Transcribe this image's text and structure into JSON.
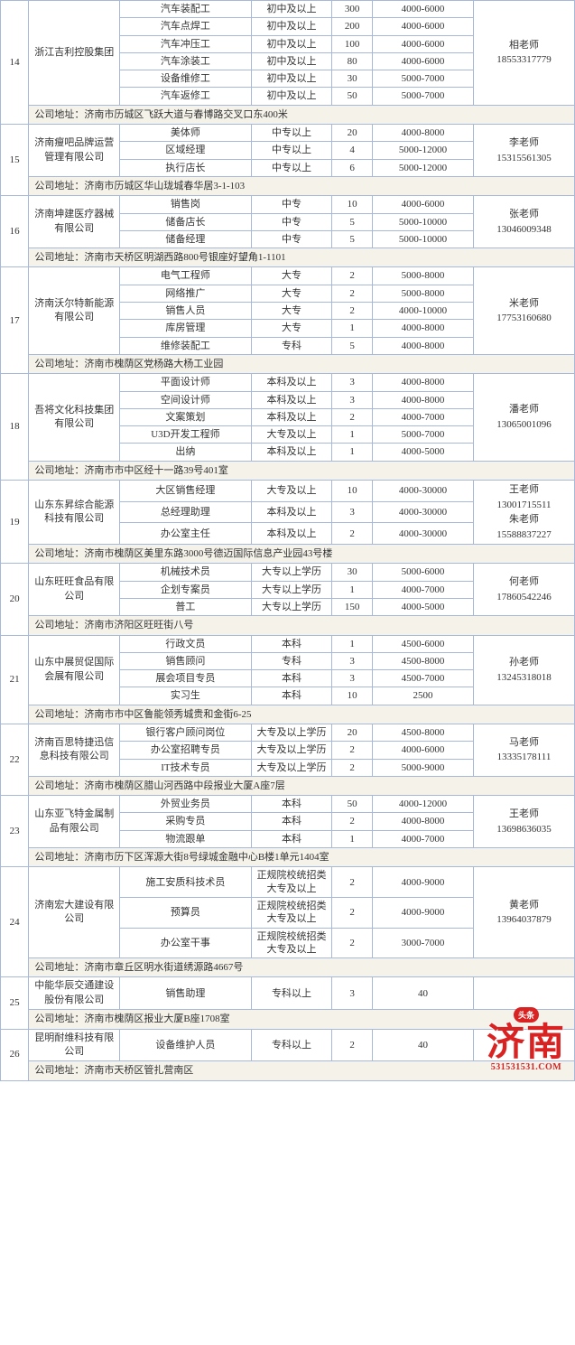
{
  "companies": [
    {
      "idx": "14",
      "name": "浙江吉利控股集团",
      "contact": "相老师\n18553317779",
      "jobs": [
        {
          "title": "汽车装配工",
          "edu": "初中及以上",
          "count": "300",
          "salary": "4000-6000"
        },
        {
          "title": "汽车点焊工",
          "edu": "初中及以上",
          "count": "200",
          "salary": "4000-6000"
        },
        {
          "title": "汽车冲压工",
          "edu": "初中及以上",
          "count": "100",
          "salary": "4000-6000"
        },
        {
          "title": "汽车涂装工",
          "edu": "初中及以上",
          "count": "80",
          "salary": "4000-6000"
        },
        {
          "title": "设备维修工",
          "edu": "初中及以上",
          "count": "30",
          "salary": "5000-7000"
        },
        {
          "title": "汽车返修工",
          "edu": "初中及以上",
          "count": "50",
          "salary": "5000-7000"
        }
      ],
      "addr": "公司地址：济南市历城区飞跃大道与春博路交叉口东400米"
    },
    {
      "idx": "15",
      "name": "济南瘦吧品牌运营管理有限公司",
      "contact": "李老师\n15315561305",
      "jobs": [
        {
          "title": "美体师",
          "edu": "中专以上",
          "count": "20",
          "salary": "4000-8000"
        },
        {
          "title": "区域经理",
          "edu": "中专以上",
          "count": "4",
          "salary": "5000-12000"
        },
        {
          "title": "执行店长",
          "edu": "中专以上",
          "count": "6",
          "salary": "5000-12000"
        }
      ],
      "addr": "公司地址：济南市历城区华山珑城春华居3-1-103"
    },
    {
      "idx": "16",
      "name": "济南坤建医疗器械有限公司",
      "contact": "张老师\n13046009348",
      "jobs": [
        {
          "title": "销售岗",
          "edu": "中专",
          "count": "10",
          "salary": "4000-6000"
        },
        {
          "title": "储备店长",
          "edu": "中专",
          "count": "5",
          "salary": "5000-10000"
        },
        {
          "title": "储备经理",
          "edu": "中专",
          "count": "5",
          "salary": "5000-10000"
        }
      ],
      "addr": "公司地址：济南市天桥区明湖西路800号银座好望角1-1101"
    },
    {
      "idx": "17",
      "name": "济南沃尔特新能源有限公司",
      "contact": "米老师\n17753160680",
      "jobs": [
        {
          "title": "电气工程师",
          "edu": "大专",
          "count": "2",
          "salary": "5000-8000"
        },
        {
          "title": "网络推广",
          "edu": "大专",
          "count": "2",
          "salary": "5000-8000"
        },
        {
          "title": "销售人员",
          "edu": "大专",
          "count": "2",
          "salary": "4000-10000"
        },
        {
          "title": "库房管理",
          "edu": "大专",
          "count": "1",
          "salary": "4000-8000"
        },
        {
          "title": "维修装配工",
          "edu": "专科",
          "count": "5",
          "salary": "4000-8000"
        }
      ],
      "addr": "公司地址：济南市槐荫区党杨路大杨工业园"
    },
    {
      "idx": "18",
      "name": "吾将文化科技集团有限公司",
      "contact": "潘老师\n13065001096",
      "jobs": [
        {
          "title": "平面设计师",
          "edu": "本科及以上",
          "count": "3",
          "salary": "4000-8000"
        },
        {
          "title": "空间设计师",
          "edu": "本科及以上",
          "count": "3",
          "salary": "4000-8000"
        },
        {
          "title": "文案策划",
          "edu": "本科及以上",
          "count": "2",
          "salary": "4000-7000"
        },
        {
          "title": "U3D开发工程师",
          "edu": "大专及以上",
          "count": "1",
          "salary": "5000-7000"
        },
        {
          "title": "出纳",
          "edu": "本科及以上",
          "count": "1",
          "salary": "4000-5000"
        }
      ],
      "addr": "公司地址：济南市市中区经十一路39号401室"
    },
    {
      "idx": "19",
      "name": "山东东昇综合能源科技有限公司",
      "contact": "王老师\n13001715511\n朱老师\n15588837227",
      "jobs": [
        {
          "title": "大区销售经理",
          "edu": "大专及以上",
          "count": "10",
          "salary": "4000-30000"
        },
        {
          "title": "总经理助理",
          "edu": "本科及以上",
          "count": "3",
          "salary": "4000-30000"
        },
        {
          "title": "办公室主任",
          "edu": "本科及以上",
          "count": "2",
          "salary": "4000-30000"
        }
      ],
      "addr": "公司地址：济南市槐荫区美里东路3000号德迈国际信息产业园43号楼"
    },
    {
      "idx": "20",
      "name": "山东旺旺食品有限公司",
      "contact": "何老师\n17860542246",
      "jobs": [
        {
          "title": "机械技术员",
          "edu": "大专以上学历",
          "count": "30",
          "salary": "5000-6000"
        },
        {
          "title": "企划专案员",
          "edu": "大专以上学历",
          "count": "1",
          "salary": "4000-7000"
        },
        {
          "title": "普工",
          "edu": "大专以上学历",
          "count": "150",
          "salary": "4000-5000"
        }
      ],
      "addr": "公司地址：济南市济阳区旺旺街八号"
    },
    {
      "idx": "21",
      "name": "山东中展贸促国际会展有限公司",
      "contact": "孙老师\n13245318018",
      "jobs": [
        {
          "title": "行政文员",
          "edu": "本科",
          "count": "1",
          "salary": "4500-6000"
        },
        {
          "title": "销售顾问",
          "edu": "专科",
          "count": "3",
          "salary": "4500-8000"
        },
        {
          "title": "展会项目专员",
          "edu": "本科",
          "count": "3",
          "salary": "4500-7000"
        },
        {
          "title": "实习生",
          "edu": "本科",
          "count": "10",
          "salary": "2500"
        }
      ],
      "addr": "公司地址：济南市市中区鲁能领秀城贵和金街6-25"
    },
    {
      "idx": "22",
      "name": "济南百思特捷迅信息科技有限公司",
      "contact": "马老师\n13335178111",
      "jobs": [
        {
          "title": "银行客户顾问岗位",
          "edu": "大专及以上学历",
          "count": "20",
          "salary": "4500-8000"
        },
        {
          "title": "办公室招聘专员",
          "edu": "大专及以上学历",
          "count": "2",
          "salary": "4000-6000"
        },
        {
          "title": "IT技术专员",
          "edu": "大专及以上学历",
          "count": "2",
          "salary": "5000-9000"
        }
      ],
      "addr": "公司地址：济南市槐荫区腊山河西路中段报业大厦A座7层"
    },
    {
      "idx": "23",
      "name": "山东亚飞特金属制品有限公司",
      "contact": "王老师\n13698636035",
      "jobs": [
        {
          "title": "外贸业务员",
          "edu": "本科",
          "count": "50",
          "salary": "4000-12000"
        },
        {
          "title": "采购专员",
          "edu": "本科",
          "count": "2",
          "salary": "4000-8000"
        },
        {
          "title": "物流跟单",
          "edu": "本科",
          "count": "1",
          "salary": "4000-7000"
        }
      ],
      "addr": "公司地址：济南市历下区浑源大街8号绿城金融中心B楼1单元1404室"
    },
    {
      "idx": "24",
      "name": "济南宏大建设有限公司",
      "contact": "黄老师\n13964037879",
      "jobs": [
        {
          "title": "施工安质科技术员",
          "edu": "正规院校统招类大专及以上",
          "count": "2",
          "salary": "4000-9000"
        },
        {
          "title": "预算员",
          "edu": "正规院校统招类大专及以上",
          "count": "2",
          "salary": "4000-9000"
        },
        {
          "title": "办公室干事",
          "edu": "正规院校统招类大专及以上",
          "count": "2",
          "salary": "3000-7000"
        }
      ],
      "addr": "公司地址：济南市章丘区明水街道绣源路4667号"
    },
    {
      "idx": "25",
      "name": "中能华辰交通建设股份有限公司",
      "contact": "",
      "jobs": [
        {
          "title": "销售助理",
          "edu": "专科以上",
          "count": "3",
          "salary": "40"
        }
      ],
      "addr": "公司地址：济南市槐荫区报业大厦B座1708室"
    },
    {
      "idx": "26",
      "name": "昆明耐维科技有限公司",
      "contact": "",
      "jobs": [
        {
          "title": "设备维护人员",
          "edu": "专科以上",
          "count": "2",
          "salary": "40"
        }
      ],
      "addr": "公司地址：济南市天桥区管扎营南区"
    }
  ],
  "watermark": {
    "badge": "头条",
    "big": "济南",
    "url": "531531531.COM"
  },
  "colors": {
    "border": "#a8b8d8",
    "addr_bg": "#f5f2ea",
    "watermark": "#d92323"
  }
}
